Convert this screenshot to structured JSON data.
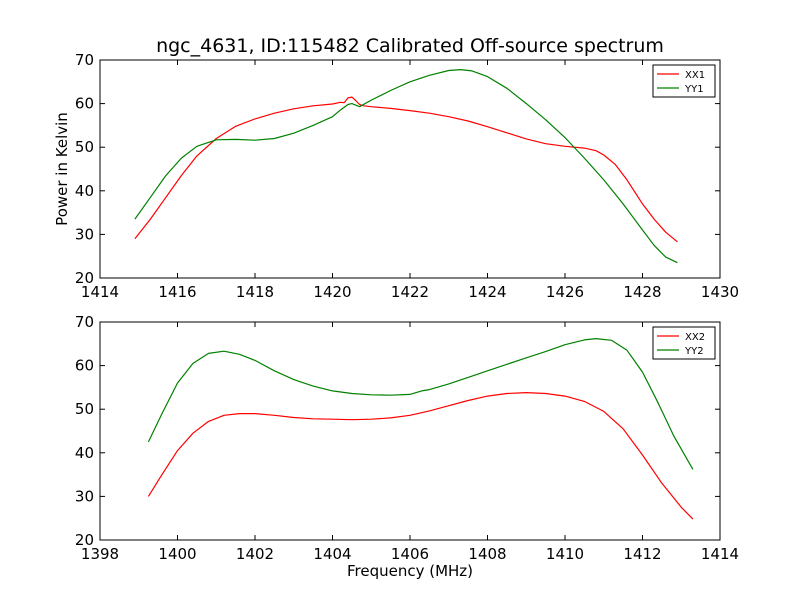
{
  "figure": {
    "title": "ngc_4631, ID:115482 Calibrated Off-source spectrum"
  },
  "chart_data": [
    {
      "type": "line",
      "title": "ngc_4631, ID:115482 Calibrated Off-source spectrum",
      "xlabel": "",
      "ylabel": "Power in Kelvin",
      "xlim": [
        1414,
        1430
      ],
      "ylim": [
        20,
        70
      ],
      "xticks": [
        1414,
        1416,
        1418,
        1420,
        1422,
        1424,
        1426,
        1428,
        1430
      ],
      "yticks": [
        20,
        30,
        40,
        50,
        60,
        70
      ],
      "grid": false,
      "legend": "top-right",
      "series": [
        {
          "name": "XX1",
          "color": "#ff0000",
          "x": [
            1414.9,
            1415.3,
            1415.7,
            1416.1,
            1416.5,
            1417.0,
            1417.5,
            1418.0,
            1418.5,
            1419.0,
            1419.5,
            1420.0,
            1420.2,
            1420.3,
            1420.4,
            1420.5,
            1420.6,
            1420.7,
            1420.8,
            1421.0,
            1421.5,
            1422.0,
            1422.5,
            1423.0,
            1423.5,
            1424.0,
            1424.5,
            1425.0,
            1425.5,
            1426.0,
            1426.5,
            1426.8,
            1427.0,
            1427.3,
            1427.6,
            1428.0,
            1428.3,
            1428.6,
            1428.9
          ],
          "y": [
            29.0,
            33.5,
            38.5,
            43.5,
            48.0,
            52.0,
            54.8,
            56.5,
            57.8,
            58.8,
            59.5,
            59.9,
            60.3,
            60.2,
            61.3,
            61.5,
            60.7,
            59.8,
            59.5,
            59.3,
            58.9,
            58.4,
            57.8,
            57.0,
            56.0,
            54.7,
            53.3,
            51.9,
            50.8,
            50.2,
            49.8,
            49.2,
            48.2,
            46.0,
            42.5,
            37.0,
            33.5,
            30.5,
            28.3
          ]
        },
        {
          "name": "YY1",
          "color": "#008000",
          "x": [
            1414.9,
            1415.3,
            1415.7,
            1416.1,
            1416.5,
            1417.0,
            1417.5,
            1418.0,
            1418.5,
            1419.0,
            1419.5,
            1420.0,
            1420.2,
            1420.4,
            1420.5,
            1420.7,
            1421.0,
            1421.5,
            1422.0,
            1422.5,
            1423.0,
            1423.3,
            1423.6,
            1424.0,
            1424.5,
            1425.0,
            1425.5,
            1426.0,
            1426.5,
            1427.0,
            1427.5,
            1428.0,
            1428.3,
            1428.6,
            1428.9
          ],
          "y": [
            33.5,
            38.5,
            43.5,
            47.5,
            50.2,
            51.7,
            51.8,
            51.6,
            52.0,
            53.2,
            55.0,
            57.0,
            58.5,
            59.8,
            60.0,
            59.3,
            60.8,
            63.0,
            65.0,
            66.5,
            67.6,
            67.8,
            67.5,
            66.2,
            63.5,
            60.0,
            56.3,
            52.2,
            47.5,
            42.5,
            37.0,
            31.0,
            27.5,
            24.8,
            23.5
          ]
        }
      ]
    },
    {
      "type": "line",
      "title": "",
      "xlabel": "Frequency (MHz)",
      "ylabel": "",
      "xlim": [
        1398,
        1414
      ],
      "ylim": [
        20,
        70
      ],
      "xticks": [
        1398,
        1400,
        1402,
        1404,
        1406,
        1408,
        1410,
        1412,
        1414
      ],
      "yticks": [
        20,
        30,
        40,
        50,
        60,
        70
      ],
      "grid": false,
      "legend": "top-right",
      "series": [
        {
          "name": "XX2",
          "color": "#ff0000",
          "x": [
            1399.25,
            1399.6,
            1400.0,
            1400.4,
            1400.8,
            1401.2,
            1401.6,
            1402.0,
            1402.5,
            1403.0,
            1403.5,
            1404.0,
            1404.5,
            1405.0,
            1405.5,
            1406.0,
            1406.5,
            1407.0,
            1407.5,
            1408.0,
            1408.5,
            1409.0,
            1409.5,
            1410.0,
            1410.5,
            1411.0,
            1411.5,
            1412.0,
            1412.5,
            1413.0,
            1413.3
          ],
          "y": [
            30.0,
            35.0,
            40.5,
            44.5,
            47.2,
            48.6,
            49.0,
            49.0,
            48.6,
            48.1,
            47.8,
            47.7,
            47.6,
            47.7,
            48.0,
            48.6,
            49.6,
            50.8,
            52.0,
            53.0,
            53.6,
            53.8,
            53.6,
            53.0,
            51.8,
            49.5,
            45.5,
            39.5,
            33.0,
            27.5,
            24.8
          ]
        },
        {
          "name": "YY2",
          "color": "#008000",
          "x": [
            1399.25,
            1399.6,
            1400.0,
            1400.4,
            1400.8,
            1401.2,
            1401.6,
            1402.0,
            1402.5,
            1403.0,
            1403.5,
            1404.0,
            1404.5,
            1405.0,
            1405.5,
            1406.0,
            1406.3,
            1406.5,
            1407.0,
            1407.5,
            1408.0,
            1408.5,
            1409.0,
            1409.5,
            1410.0,
            1410.5,
            1410.8,
            1411.2,
            1411.6,
            1412.0,
            1412.4,
            1412.8,
            1413.3
          ],
          "y": [
            42.5,
            49.0,
            56.0,
            60.5,
            62.8,
            63.3,
            62.6,
            61.2,
            58.8,
            56.8,
            55.3,
            54.2,
            53.6,
            53.3,
            53.2,
            53.4,
            54.2,
            54.5,
            55.8,
            57.3,
            58.8,
            60.3,
            61.8,
            63.2,
            64.8,
            65.9,
            66.2,
            65.8,
            63.5,
            58.5,
            51.5,
            44.0,
            36.2
          ]
        }
      ]
    }
  ]
}
